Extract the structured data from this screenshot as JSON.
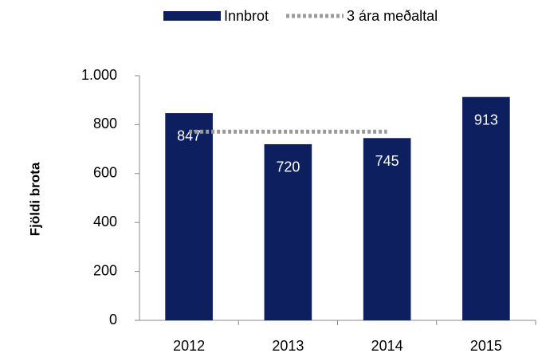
{
  "chart_data": {
    "type": "bar",
    "y_label": "Fjöldi brota",
    "categories": [
      "2012",
      "2013",
      "2014",
      "2015"
    ],
    "series": [
      {
        "name": "Innbrot",
        "type": "bar",
        "color": "#0d1f5e",
        "values": [
          847,
          720,
          745,
          913
        ]
      },
      {
        "name": "3 ára meðaltal",
        "type": "line",
        "color": "#9a9a9a",
        "values": [
          771,
          771,
          771,
          null
        ]
      }
    ],
    "ylim": [
      0,
      1000
    ],
    "yticks": [
      0,
      200,
      400,
      600,
      800,
      {
        "value": 1000,
        "label": "1.000"
      }
    ],
    "grid": false,
    "legend": "top"
  }
}
